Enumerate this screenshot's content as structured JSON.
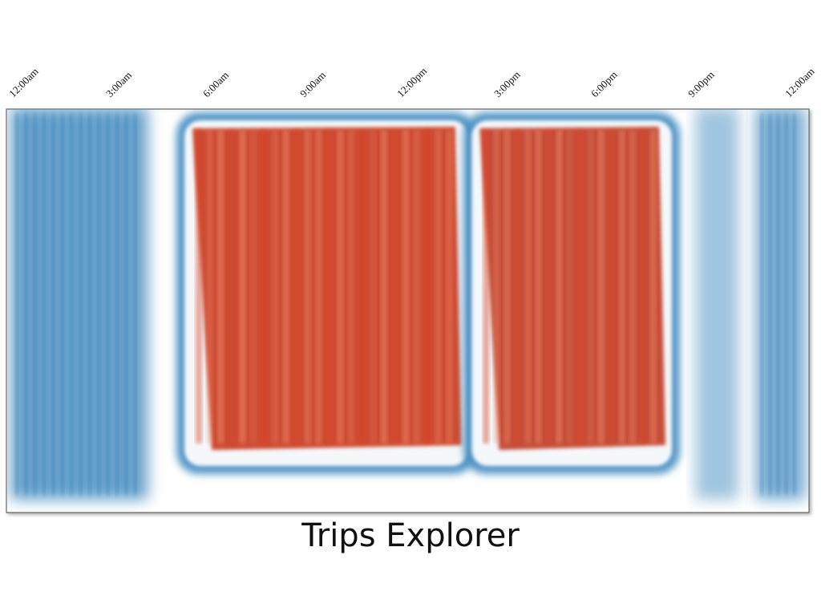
{
  "chart_data": {
    "type": "heatmap",
    "title": "Trips Explorer",
    "x_ticks": [
      "12:00am",
      "3:00am",
      "6:00am",
      "9:00am",
      "12:00pm",
      "3:00pm",
      "6:00pm",
      "9:00pm",
      "12:00am"
    ],
    "x_range_hours": [
      0,
      24
    ],
    "grid": false,
    "colors": {
      "low": "#4a8fc2",
      "high": "#dc4320",
      "background": "#ffffff",
      "frame": "#555555"
    },
    "activity": [
      {
        "start_hour": 0.0,
        "end_hour": 4.3,
        "intensity": 0.25
      },
      {
        "start_hour": 5.4,
        "end_hour": 13.7,
        "intensity": 0.9
      },
      {
        "start_hour": 14.0,
        "end_hour": 19.8,
        "intensity": 0.85
      },
      {
        "start_hour": 20.5,
        "end_hour": 22.0,
        "intensity": 0.1
      },
      {
        "start_hour": 22.3,
        "end_hour": 24.0,
        "intensity": 0.2
      }
    ]
  }
}
